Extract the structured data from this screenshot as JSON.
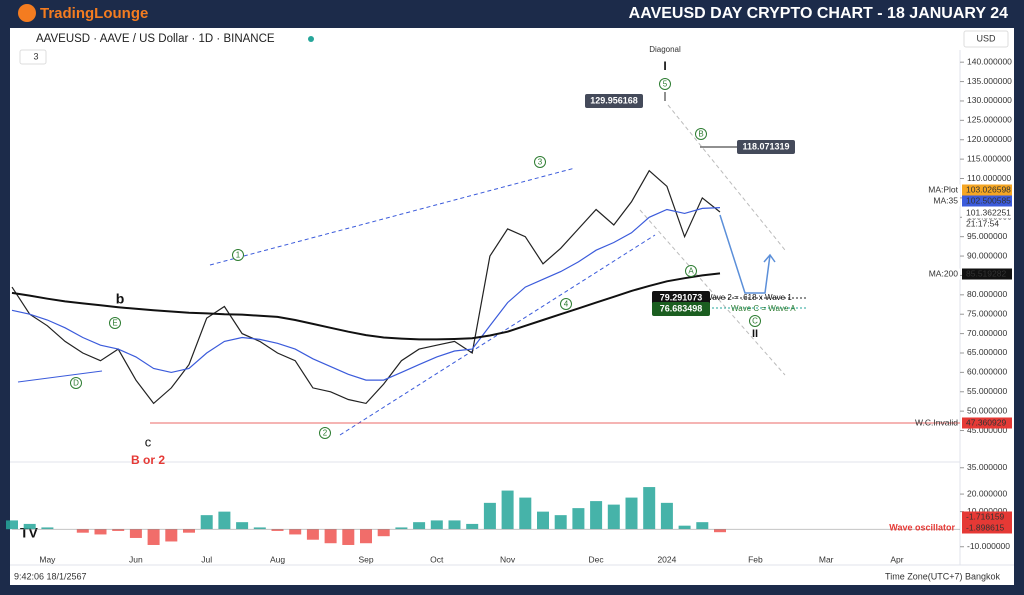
{
  "header": {
    "brand": "TradingLounge",
    "title": "AAVEUSD DAY CRYPTO CHART - 18 JANUARY 24"
  },
  "symbol": {
    "name": "AAVEUSD · AAVE / US Dollar · 1D · BINANCE",
    "indicators_count": "3",
    "currency": "USD"
  },
  "footer": {
    "time": "9:42:06 18/1/2567",
    "timezone": "Time Zone(UTC+7) Bangkok"
  },
  "chart_data": {
    "type": "line",
    "categories": [
      null,
      null,
      "May",
      null,
      null,
      null,
      null,
      "Jun",
      null,
      null,
      null,
      "Jul",
      null,
      null,
      null,
      "Aug",
      null,
      null,
      null,
      null,
      "Sep",
      null,
      null,
      null,
      "Oct",
      null,
      null,
      null,
      "Nov",
      null,
      null,
      null,
      null,
      "Dec",
      null,
      null,
      null,
      "2024",
      null,
      null,
      null,
      null,
      "Feb",
      null,
      null,
      null,
      "Mar",
      null,
      null,
      null,
      "Apr",
      null,
      null,
      null
    ],
    "series": [
      {
        "name": "AAVEUSD",
        "color": "#222222",
        "values": [
          82,
          75,
          72,
          68,
          65,
          63,
          66,
          58,
          52,
          56,
          62,
          74,
          77,
          70,
          68,
          65,
          63,
          56,
          55,
          53,
          52,
          57,
          63,
          66,
          67,
          68,
          65,
          90,
          97,
          95,
          88,
          92,
          97,
          102,
          98,
          104,
          112,
          108,
          95,
          105,
          101.362251,
          null,
          null,
          null,
          null,
          null,
          null,
          null,
          null,
          null,
          null,
          null,
          null,
          null
        ]
      },
      {
        "name": "MA:35",
        "color": "#3b5bdb",
        "values": [
          76,
          75,
          73.5,
          71.5,
          69,
          67,
          66,
          64,
          61,
          60,
          61,
          65,
          68,
          69,
          68.5,
          67.5,
          66,
          63.5,
          61.5,
          59.5,
          58,
          58,
          60,
          62,
          64,
          65.5,
          66,
          72,
          78,
          82,
          84,
          86,
          88.5,
          91.5,
          93.5,
          96,
          100,
          102,
          101,
          102.3,
          102.500585,
          null,
          null,
          null,
          null,
          null,
          null,
          null,
          null,
          null,
          null,
          null,
          null,
          null
        ]
      },
      {
        "name": "MA:200",
        "color": "#111111",
        "values": [
          80.5,
          79.8,
          79,
          78.3,
          77.8,
          77.3,
          76.8,
          76.4,
          76,
          75.7,
          75.4,
          75.2,
          75,
          74.9,
          74.6,
          74.3,
          73.5,
          72.5,
          71.5,
          70.5,
          69.6,
          69,
          68.7,
          68.5,
          68.5,
          68.6,
          68.8,
          69.5,
          70.5,
          72,
          73.5,
          75,
          76.5,
          78,
          79.5,
          81,
          82.3,
          83.5,
          84.3,
          85,
          85.519282,
          null,
          null,
          null,
          null,
          null,
          null,
          null,
          null,
          null,
          null,
          null,
          null,
          null
        ]
      }
    ],
    "oscillator": {
      "name": "Wave oscillator",
      "values": [
        5,
        3,
        1,
        0,
        -2,
        -3,
        -1,
        -5,
        -9,
        -7,
        -2,
        8,
        10,
        4,
        1,
        -1,
        -3,
        -6,
        -8,
        -9,
        -8,
        -4,
        1,
        4,
        5,
        5,
        3,
        15,
        22,
        18,
        10,
        8,
        12,
        16,
        14,
        18,
        24,
        15,
        2,
        4,
        -1.716159,
        null,
        null,
        null,
        null,
        null,
        null,
        null,
        null,
        null,
        null,
        null,
        null,
        null
      ],
      "ylim": [
        -13,
        36
      ],
      "yticks": [
        {
          "value": 35,
          "label": "35.000000"
        },
        {
          "value": 20,
          "label": "20.000000"
        },
        {
          "value": 10,
          "label": "10.000000"
        },
        {
          "value": -10,
          "label": "-10.000000"
        }
      ],
      "up_color": "#26a69a",
      "down_color": "#ef5350"
    },
    "ylim": [
      37.4,
      148.3
    ],
    "yticks": [
      {
        "value": 140,
        "label": "140.000000"
      },
      {
        "value": 135,
        "label": "135.000000"
      },
      {
        "value": 130,
        "label": "130.000000"
      },
      {
        "value": 125,
        "label": "125.000000"
      },
      {
        "value": 120,
        "label": "120.000000"
      },
      {
        "value": 115,
        "label": "115.000000"
      },
      {
        "value": 110,
        "label": "110.000000"
      },
      {
        "value": 105,
        "label": "105.000000"
      },
      {
        "value": 100,
        "label": "100.000000"
      },
      {
        "value": 95,
        "label": "95.000000"
      },
      {
        "value": 90,
        "label": "90.000000"
      },
      {
        "value": 85,
        "label": "85.000000"
      },
      {
        "value": 80,
        "label": "80.000000"
      },
      {
        "value": 75,
        "label": "75.000000"
      },
      {
        "value": 70,
        "label": "70.000000"
      },
      {
        "value": 65,
        "label": "65.000000"
      },
      {
        "value": 60,
        "label": "60.000000"
      },
      {
        "value": 55,
        "label": "55.000000"
      },
      {
        "value": 50,
        "label": "50.000000"
      },
      {
        "value": 45,
        "label": "45.000000"
      }
    ],
    "badges": [
      {
        "name": "MA:Plot",
        "value": "103.026598",
        "color": "#f5a623"
      },
      {
        "name": "MA:35",
        "value": "102.500585",
        "color": "#3b5bdb"
      },
      {
        "name": "21:17:54",
        "value": "101.362251",
        "color": "#111111"
      },
      {
        "name": "MA:200",
        "value": "85.519282",
        "color": "#111111"
      },
      {
        "name": "W.C.Invalid",
        "value": "47.360929",
        "color": "#e53935"
      },
      {
        "name": "Wave oscillator",
        "value": "-1.716159",
        "color": "#e53935"
      },
      {
        "name": "",
        "value": "-1.898615",
        "color": "#e53935"
      }
    ],
    "price_labels": [
      "129.956168",
      "118.071319",
      "79.291073",
      "76.683498"
    ],
    "wave_labels": [
      "1",
      "2",
      "3",
      "4",
      "5",
      "E",
      "D",
      "A",
      "B",
      "C"
    ],
    "texts": [
      "b",
      "c",
      "B or 2",
      "Diagonal",
      "I",
      "II",
      "Wave 2 = .618 x Wave 1",
      "Wave C = Wave A"
    ]
  }
}
